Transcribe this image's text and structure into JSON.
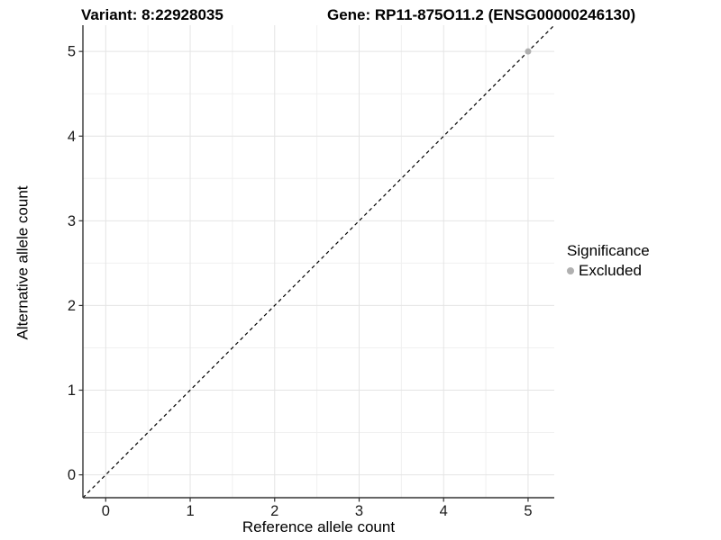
{
  "header": {
    "variant_title": "Variant: 8:22928035",
    "gene_title": "Gene: RP11-875O11.2 (ENSG00000246130)"
  },
  "chart_data": {
    "type": "scatter",
    "title_left": "Variant: 8:22928035",
    "title_right": "Gene: RP11-875O11.2 (ENSG00000246130)",
    "xlabel": "Reference allele count",
    "ylabel": "Alternative allele count",
    "xlim": [
      -0.27,
      5.31
    ],
    "ylim": [
      -0.27,
      5.31
    ],
    "x_ticks": [
      0,
      1,
      2,
      3,
      4,
      5
    ],
    "y_ticks": [
      0,
      1,
      2,
      3,
      4,
      5
    ],
    "grid": true,
    "identity_line": {
      "style": "dashed",
      "color": "#000000",
      "equation": "y = x"
    },
    "points": [
      {
        "x": 5,
        "y": 5,
        "significance": "Excluded",
        "color": "#b0b0b0"
      }
    ],
    "legend": {
      "position": "right",
      "title": "Significance",
      "entries": [
        {
          "label": "Excluded",
          "color": "#b0b0b0"
        }
      ]
    },
    "colors": {
      "axis_line": "#333333",
      "grid_major": "#e4e4e4",
      "grid_minor": "#f0f0f0",
      "tick_text": "#1a1a1a",
      "point_excluded": "#b0b0b0"
    }
  }
}
